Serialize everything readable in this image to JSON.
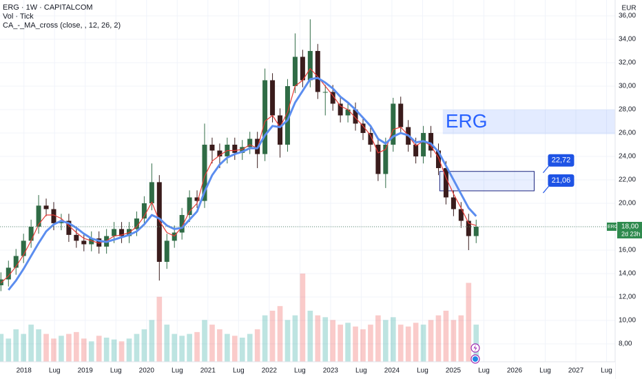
{
  "chart_data": {
    "type": "candlestick",
    "title": "ERG · 1W · CAPITALCOM",
    "indicators": [
      "Vol · Tick",
      "CA_-_MA_cross (close, , 12, 26, 2)"
    ],
    "currency": "EUR",
    "x": [
      2017.625,
      2017.748,
      2017.871,
      2017.994,
      2018.117,
      2018.24,
      2018.363,
      2018.486,
      2018.609,
      2018.732,
      2018.855,
      2018.978,
      2019.101,
      2019.224,
      2019.347,
      2019.47,
      2019.593,
      2019.716,
      2019.839,
      2019.962,
      2020.085,
      2020.208,
      2020.331,
      2020.454,
      2020.577,
      2020.7,
      2020.823,
      2020.946,
      2021.069,
      2021.192,
      2021.315,
      2021.438,
      2021.561,
      2021.684,
      2021.807,
      2021.93,
      2022.053,
      2022.176,
      2022.299,
      2022.422,
      2022.545,
      2022.668,
      2022.791,
      2022.914,
      2023.037,
      2023.16,
      2023.283,
      2023.406,
      2023.529,
      2023.652,
      2023.775,
      2023.898,
      2024.021,
      2024.144,
      2024.267,
      2024.39,
      2024.513,
      2024.636,
      2024.759,
      2024.882,
      2025.005,
      2025.128,
      2025.251,
      2025.374
    ],
    "open": [
      13.0,
      13.5,
      14.5,
      15.5,
      16.8,
      18.0,
      19.8,
      19.5,
      18.3,
      18.5,
      17.3,
      16.8,
      16.5,
      17.0,
      16.3,
      17.2,
      17.8,
      17.2,
      17.8,
      18.7,
      20.0,
      21.8,
      15.0,
      16.8,
      17.5,
      19.0,
      20.5,
      20.2,
      25.0,
      24.5,
      24.0,
      25.0,
      24.3,
      24.8,
      25.5,
      24.2,
      30.5,
      27.5,
      25.0,
      30.0,
      32.5,
      30.5,
      33.0,
      29.5,
      29.5,
      28.5,
      27.5,
      28.0,
      26.8,
      26.0,
      25.0,
      22.5,
      25.0,
      28.5,
      26.5,
      25.0,
      24.0,
      26.0,
      24.5,
      23.0,
      20.5,
      19.5,
      18.5,
      17.2
    ],
    "high": [
      14.1,
      15.1,
      16.1,
      17.4,
      18.6,
      20.7,
      20.4,
      20.1,
      19.1,
      19.1,
      17.9,
      17.4,
      17.6,
      17.6,
      17.8,
      18.4,
      18.4,
      18.4,
      19.3,
      20.6,
      23.4,
      22.4,
      17.4,
      18.1,
      19.6,
      21.1,
      21.1,
      26.8,
      25.6,
      25.1,
      25.6,
      25.6,
      25.4,
      26.1,
      26.1,
      31.5,
      31.1,
      28.1,
      30.6,
      34.5,
      33.1,
      35.7,
      33.6,
      30.1,
      30.1,
      29.1,
      28.6,
      28.6,
      27.4,
      26.6,
      25.6,
      25.6,
      29.0,
      29.1,
      27.1,
      25.6,
      26.6,
      26.6,
      25.1,
      23.6,
      21.1,
      20.1,
      19.1,
      18.6
    ],
    "low": [
      12.5,
      12.9,
      13.9,
      14.9,
      16.2,
      17.4,
      18.9,
      17.7,
      17.7,
      16.7,
      16.2,
      15.9,
      15.9,
      15.7,
      15.7,
      16.6,
      16.6,
      16.6,
      17.2,
      18.1,
      19.4,
      13.4,
      14.4,
      16.2,
      16.9,
      18.4,
      19.6,
      19.6,
      23.4,
      23.0,
      23.4,
      23.7,
      23.7,
      24.2,
      23.0,
      23.6,
      26.9,
      23.9,
      24.4,
      29.4,
      29.9,
      29.9,
      28.9,
      27.5,
      27.9,
      26.9,
      26.9,
      26.2,
      25.4,
      24.4,
      21.9,
      21.3,
      24.4,
      25.9,
      24.4,
      23.4,
      23.4,
      23.9,
      22.4,
      19.9,
      18.9,
      17.9,
      16.0,
      16.6
    ],
    "close": [
      13.5,
      14.5,
      15.5,
      16.8,
      18.0,
      19.8,
      19.5,
      18.3,
      18.5,
      17.3,
      16.8,
      16.5,
      17.0,
      16.3,
      17.2,
      17.8,
      17.2,
      17.8,
      18.7,
      20.0,
      21.8,
      15.0,
      16.8,
      17.5,
      19.0,
      20.5,
      20.2,
      25.0,
      24.5,
      24.0,
      25.0,
      24.3,
      24.8,
      25.5,
      24.2,
      30.5,
      27.5,
      25.0,
      30.0,
      32.5,
      30.5,
      33.0,
      29.5,
      29.5,
      28.5,
      27.5,
      28.0,
      26.8,
      26.0,
      25.0,
      22.5,
      25.0,
      28.5,
      26.5,
      25.0,
      24.0,
      26.0,
      24.5,
      23.0,
      20.5,
      19.5,
      18.5,
      17.2,
      18.0
    ],
    "volume": [
      30,
      25,
      35,
      30,
      40,
      35,
      30,
      25,
      28,
      30,
      32,
      25,
      22,
      28,
      26,
      24,
      22,
      25,
      30,
      35,
      45,
      70,
      40,
      30,
      28,
      30,
      32,
      45,
      40,
      35,
      30,
      28,
      26,
      30,
      35,
      50,
      55,
      60,
      45,
      50,
      95,
      55,
      50,
      48,
      45,
      40,
      42,
      38,
      35,
      40,
      50,
      45,
      48,
      40,
      38,
      42,
      40,
      45,
      50,
      55,
      45,
      50,
      85,
      40
    ],
    "up_color": "#2f6b45",
    "down_color": "#3a1c1c",
    "volume_up_color": "rgba(38,166,154,0.3)",
    "volume_down_color": "rgba(239,83,80,0.3)",
    "series": [
      {
        "name": "MA 12",
        "color": "#e53935",
        "values": [
          13.2,
          13.8,
          14.6,
          15.6,
          16.8,
          18.2,
          19.0,
          19.0,
          18.7,
          18.1,
          17.5,
          17.0,
          16.8,
          16.6,
          16.8,
          17.2,
          17.3,
          17.5,
          18.0,
          18.9,
          20.1,
          18.5,
          17.5,
          17.2,
          18.0,
          19.3,
          20.0,
          22.3,
          23.6,
          24.1,
          24.5,
          24.5,
          24.6,
          25.0,
          24.7,
          27.0,
          27.5,
          26.5,
          27.8,
          30.0,
          30.5,
          31.5,
          30.8,
          30.0,
          29.2,
          28.3,
          28.0,
          27.3,
          26.6,
          25.8,
          24.3,
          24.6,
          26.3,
          26.5,
          25.8,
          24.9,
          25.3,
          24.9,
          23.9,
          22.2,
          20.8,
          19.6,
          18.3,
          18.1
        ]
      },
      {
        "name": "MA 26",
        "color": "#5b8def",
        "values": [
          null,
          12.6,
          13.4,
          14.4,
          15.5,
          16.6,
          17.6,
          18.2,
          18.5,
          18.3,
          17.9,
          17.4,
          17.0,
          16.8,
          16.7,
          16.9,
          17.1,
          17.3,
          17.6,
          18.2,
          19.0,
          18.7,
          18.1,
          17.8,
          17.9,
          18.6,
          19.3,
          21.0,
          22.4,
          23.3,
          23.9,
          24.2,
          24.4,
          24.7,
          24.7,
          25.8,
          26.6,
          26.5,
          27.1,
          28.6,
          29.6,
          30.6,
          30.7,
          30.3,
          29.8,
          29.1,
          28.6,
          28.0,
          27.3,
          26.6,
          25.5,
          25.1,
          25.7,
          26.0,
          25.8,
          25.2,
          25.3,
          25.1,
          24.4,
          23.2,
          22.0,
          20.8,
          19.6,
          18.9
        ]
      }
    ],
    "xlim": [
      2017.61,
      2027.64
    ],
    "xticks": [
      2018,
      {
        "value": 2018.5,
        "label": "Lug"
      },
      2019,
      {
        "value": 2019.5,
        "label": "Lug"
      },
      2020,
      {
        "value": 2020.5,
        "label": "Lug"
      },
      2021,
      {
        "value": 2021.5,
        "label": "Lug"
      },
      2022,
      {
        "value": 2022.5,
        "label": "Lug"
      },
      2023,
      {
        "value": 2023.5,
        "label": "Lug"
      },
      2024,
      {
        "value": 2024.5,
        "label": "Lug"
      },
      2025,
      {
        "value": 2025.5,
        "label": "Lug"
      },
      2026,
      {
        "value": 2026.5,
        "label": "Lug"
      },
      2027,
      {
        "value": 2027.5,
        "label": "Lug"
      }
    ],
    "ylim": [
      6.47,
      37.35
    ],
    "yticks": [
      {
        "value": 8,
        "label": "8,00"
      },
      {
        "value": 10,
        "label": "10,00"
      },
      {
        "value": 12,
        "label": "12,00"
      },
      {
        "value": 14,
        "label": "14,00"
      },
      {
        "value": 16,
        "label": "16,00"
      },
      {
        "value": 18,
        "label": "18,00"
      },
      {
        "value": 20,
        "label": "20,00"
      },
      {
        "value": 22,
        "label": "22,00"
      },
      {
        "value": 24,
        "label": "24,00"
      },
      {
        "value": 26,
        "label": "26,00"
      },
      {
        "value": 28,
        "label": "28,00"
      },
      {
        "value": 30,
        "label": "30,00"
      },
      {
        "value": 32,
        "label": "32,00"
      },
      {
        "value": 34,
        "label": "34,00"
      },
      {
        "value": 36,
        "label": "36,00"
      }
    ],
    "grid": true,
    "zone": {
      "x": [
        2024.78,
        2026.32
      ],
      "low": 21.06,
      "high": 22.72,
      "low_label": "21,06",
      "high_label": "22,72",
      "color": "#1e53e5"
    },
    "banner": {
      "text": "ERG",
      "x0": 2024.83,
      "low": 25.9,
      "high": 28.0,
      "color": "#2962ff"
    },
    "last_price": {
      "symbol": "ERG",
      "value": 18.0,
      "label": "18,00",
      "countdown": "2d 23h",
      "color": "#2f8a4e"
    }
  }
}
